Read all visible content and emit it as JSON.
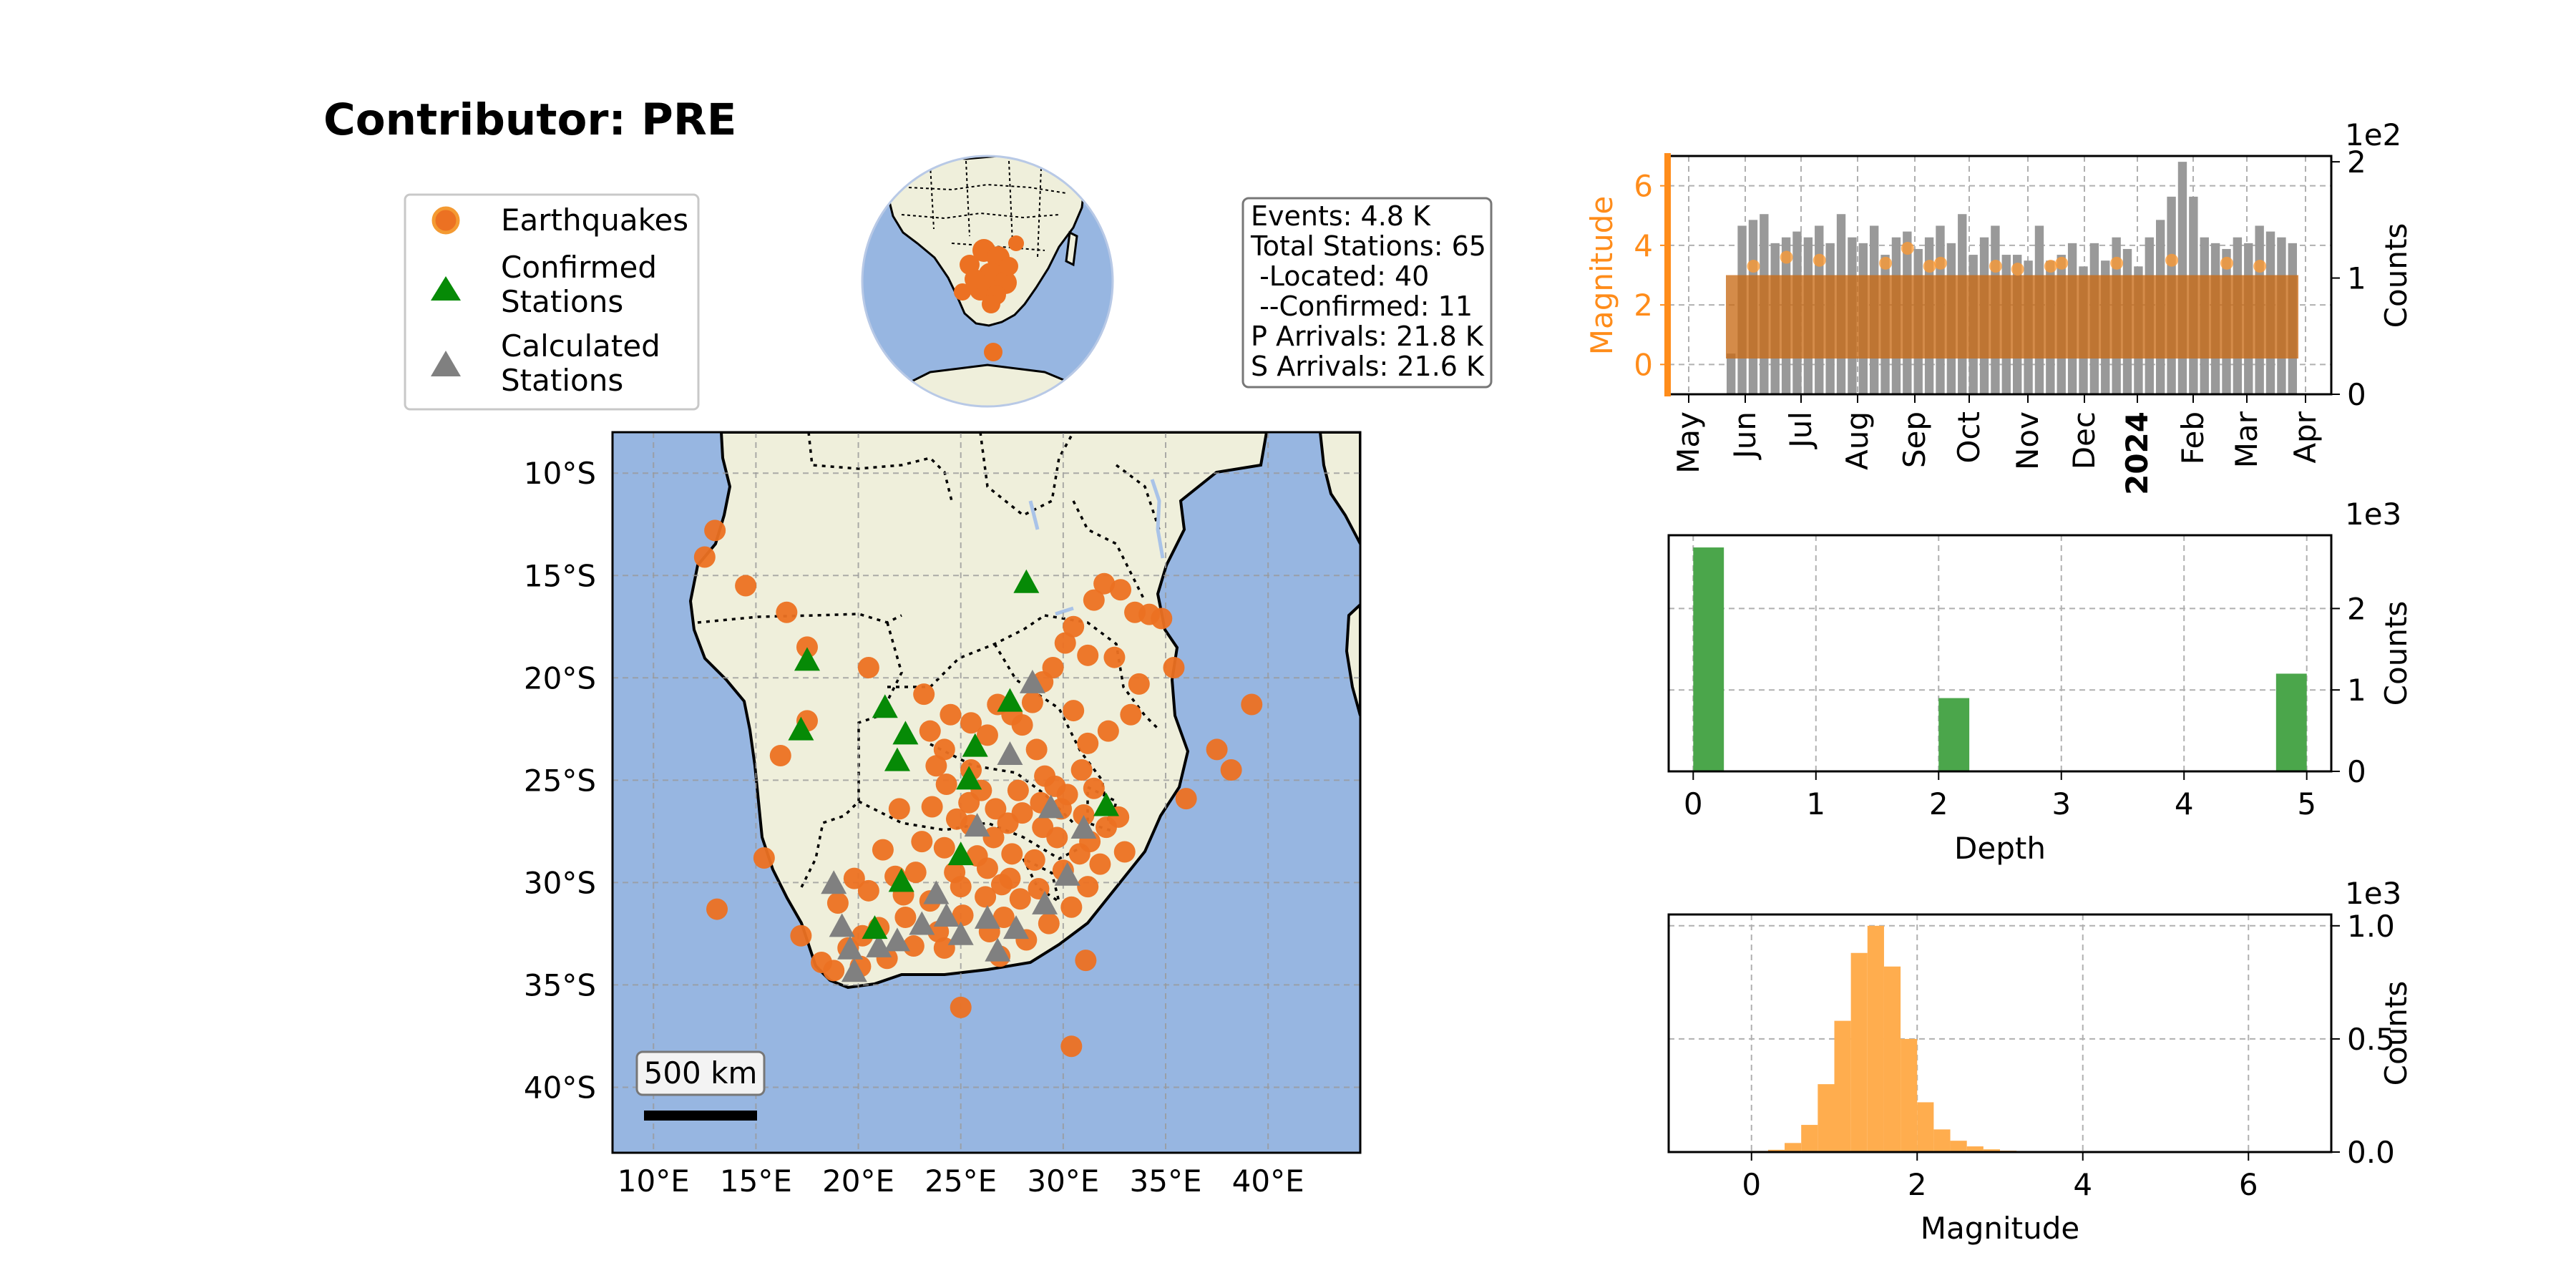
{
  "page": {
    "title": "Contributor: PRE"
  },
  "legend": {
    "items": [
      {
        "label_lines": [
          "Earthquakes"
        ],
        "marker": "circle",
        "color": "#f28c28"
      },
      {
        "label_lines": [
          "Confirmed",
          "Stations"
        ],
        "marker": "triangle",
        "color": "#008000"
      },
      {
        "label_lines": [
          "Calculated",
          "Stations"
        ],
        "marker": "triangle",
        "color": "#808080"
      }
    ]
  },
  "stats_box": {
    "lines": [
      "Events: 4.8 K",
      "Total Stations: 65",
      " -Located: 40",
      " --Confirmed: 11",
      "P Arrivals: 21.8 K",
      "S Arrivals: 21.6 K"
    ]
  },
  "scale_bar": {
    "label": "500 km"
  },
  "colors": {
    "ocean": "#97b6e1",
    "land": "#efefdb",
    "quake": "#ec7122",
    "confirmed": "#068a06",
    "calculated": "#808080",
    "depth_bar": "#4ba64b",
    "mag_hist": "#ffad4e",
    "time_bar": "#999999",
    "mag_axis": "#ff8c1a"
  },
  "chart_data": [
    {
      "type": "scatter",
      "name": "map",
      "xticks": [
        "10°E",
        "15°E",
        "20°E",
        "25°E",
        "30°E",
        "35°E",
        "40°E"
      ],
      "yticks": [
        "10°S",
        "15°S",
        "20°S",
        "25°S",
        "30°S",
        "35°S",
        "40°S"
      ],
      "xlim": [
        8,
        44.5
      ],
      "ylim": [
        -43.2,
        -8
      ],
      "grid": true,
      "quakes": [
        [
          13,
          -12.8
        ],
        [
          12.5,
          -14.1
        ],
        [
          14.5,
          -15.5
        ],
        [
          16.5,
          -16.8
        ],
        [
          17.5,
          -18.5
        ],
        [
          20.5,
          -19.5
        ],
        [
          23.2,
          -20.8
        ],
        [
          23.5,
          -22.6
        ],
        [
          24.2,
          -23.5
        ],
        [
          24.5,
          -21.8
        ],
        [
          25.5,
          -22.2
        ],
        [
          26.3,
          -22.8
        ],
        [
          26.8,
          -21.3
        ],
        [
          27.5,
          -21.8
        ],
        [
          28,
          -22.3
        ],
        [
          28.5,
          -21.2
        ],
        [
          29,
          -20.2
        ],
        [
          29.5,
          -19.5
        ],
        [
          30.1,
          -18.3
        ],
        [
          30.5,
          -17.5
        ],
        [
          31.2,
          -18.9
        ],
        [
          31.5,
          -16.2
        ],
        [
          32,
          -15.4
        ],
        [
          32.8,
          -15.7
        ],
        [
          33.5,
          -16.8
        ],
        [
          34.2,
          -16.9
        ],
        [
          34.8,
          -17.1
        ],
        [
          35.4,
          -19.5
        ],
        [
          39.2,
          -21.3
        ],
        [
          37.5,
          -23.5
        ],
        [
          38.2,
          -24.5
        ],
        [
          36,
          -25.9
        ],
        [
          33,
          -28.5
        ],
        [
          31.1,
          -33.8
        ],
        [
          30.4,
          -38
        ],
        [
          25,
          -36.1
        ],
        [
          13.1,
          -31.3
        ],
        [
          15.4,
          -28.8
        ],
        [
          16.2,
          -23.8
        ],
        [
          17.5,
          -22.1
        ],
        [
          17.2,
          -32.6
        ],
        [
          22,
          -26.4
        ],
        [
          28.7,
          -23.5
        ],
        [
          30.5,
          -21.6
        ],
        [
          31.2,
          -23.2
        ],
        [
          33.3,
          -21.8
        ],
        [
          33.7,
          -20.3
        ],
        [
          32.5,
          -19
        ],
        [
          32.2,
          -22.6
        ],
        [
          19,
          -31
        ],
        [
          20.5,
          -30.4
        ],
        [
          22.8,
          -29.5
        ],
        [
          24.2,
          -28.3
        ],
        [
          25.5,
          -27.2
        ],
        [
          26.7,
          -26.4
        ],
        [
          27.8,
          -25.5
        ],
        [
          29.1,
          -24.8
        ],
        [
          30.2,
          -25.7
        ],
        [
          31,
          -26.7
        ],
        [
          29.7,
          -27.8
        ],
        [
          28.6,
          -28.9
        ],
        [
          27.4,
          -29.8
        ],
        [
          26.2,
          -30.7
        ],
        [
          25.1,
          -31.6
        ],
        [
          23.9,
          -32.4
        ],
        [
          22.7,
          -33.1
        ],
        [
          21.4,
          -33.7
        ],
        [
          20.1,
          -34.1
        ],
        [
          19.5,
          -33.2
        ],
        [
          18.8,
          -34.3
        ],
        [
          18.2,
          -33.9
        ],
        [
          26.9,
          -33.6
        ],
        [
          28.2,
          -32.8
        ],
        [
          29.3,
          -32
        ],
        [
          30.4,
          -31.2
        ],
        [
          31.2,
          -30.2
        ],
        [
          31.8,
          -29.1
        ],
        [
          31.3,
          -28
        ],
        [
          32.1,
          -27.3
        ],
        [
          32.7,
          -26.8
        ],
        [
          24.3,
          -25.2
        ],
        [
          23.8,
          -24.3
        ],
        [
          25.5,
          -24.5
        ],
        [
          26,
          -25.5
        ],
        [
          27.3,
          -27.1
        ],
        [
          28,
          -26.6
        ],
        [
          28.9,
          -26.1
        ],
        [
          29.6,
          -25.3
        ],
        [
          30.9,
          -24.5
        ],
        [
          31.5,
          -25.4
        ],
        [
          21.2,
          -28.4
        ],
        [
          22.2,
          -30.6
        ],
        [
          23.5,
          -30.9
        ],
        [
          24.7,
          -29.5
        ],
        [
          25.8,
          -28.7
        ],
        [
          26.6,
          -27.8
        ],
        [
          27.9,
          -30.8
        ],
        [
          28.8,
          -30.3
        ],
        [
          30,
          -29.4
        ],
        [
          30.8,
          -28.6
        ],
        [
          26.4,
          -32.4
        ],
        [
          27.1,
          -31.7
        ],
        [
          24.2,
          -33.2
        ],
        [
          21,
          -32.2
        ],
        [
          20.2,
          -32.6
        ],
        [
          22.3,
          -31.7
        ],
        [
          23.1,
          -28
        ],
        [
          24.8,
          -26.9
        ],
        [
          25.4,
          -26.1
        ],
        [
          27.5,
          -28.6
        ],
        [
          29,
          -27.3
        ],
        [
          29.9,
          -26.4
        ],
        [
          19.8,
          -29.8
        ],
        [
          21.8,
          -29.7
        ],
        [
          23.6,
          -26.3
        ],
        [
          25,
          -30.2
        ],
        [
          26.3,
          -29.3
        ],
        [
          27,
          -30.1
        ]
      ],
      "confirmed": [
        [
          17.5,
          -19.2
        ],
        [
          28.2,
          -15.4
        ],
        [
          21.3,
          -21.5
        ],
        [
          17.2,
          -22.6
        ],
        [
          22.3,
          -22.8
        ],
        [
          21.9,
          -24.1
        ],
        [
          27.4,
          -21.2
        ],
        [
          25.7,
          -23.4
        ],
        [
          25.4,
          -25
        ],
        [
          32.1,
          -26.3
        ],
        [
          25,
          -28.7
        ],
        [
          22.1,
          -30
        ],
        [
          20.8,
          -32.3
        ]
      ],
      "calculated": [
        [
          28.5,
          -20.3
        ],
        [
          27.4,
          -23.8
        ],
        [
          24.3,
          -31.7
        ],
        [
          31,
          -27.4
        ],
        [
          18.8,
          -30.1
        ],
        [
          19.2,
          -32.2
        ],
        [
          19.6,
          -33.3
        ],
        [
          21,
          -33.2
        ],
        [
          21.9,
          -32.9
        ],
        [
          23.1,
          -32.1
        ],
        [
          25,
          -32.6
        ],
        [
          26.3,
          -31.8
        ],
        [
          26.8,
          -33.4
        ],
        [
          27.7,
          -32.3
        ],
        [
          29.1,
          -31.1
        ],
        [
          30.2,
          -29.7
        ],
        [
          19.8,
          -34.4
        ],
        [
          25.8,
          -27.3
        ],
        [
          23.8,
          -30.6
        ],
        [
          29.4,
          -26.4
        ]
      ]
    },
    {
      "type": "line",
      "name": "globe_inset",
      "center_lon": 25,
      "center_lat": -10,
      "quakes_marked": true
    },
    {
      "type": "bar",
      "name": "events_over_time",
      "categories": [
        "May",
        "Jun",
        "Jul",
        "Aug",
        "Sep",
        "Oct",
        "Nov",
        "Dec",
        "2024",
        "Feb",
        "Mar",
        "Apr"
      ],
      "bold_category": "2024",
      "y_left_label": "Magnitude",
      "y_left_ticks": [
        "0",
        "2",
        "4",
        "6"
      ],
      "y_left_lim": [
        -1,
        7
      ],
      "y_right_label": "Counts",
      "y_right_ticks": [
        "0",
        "1",
        "2"
      ],
      "y_right_lim": [
        0,
        2.05
      ],
      "y_right_scale_note": "1e2",
      "bar_values": [
        0.35,
        1.45,
        1.5,
        1.55,
        1.3,
        1.35,
        1.4,
        1.35,
        1.45,
        1.3,
        1.55,
        1.35,
        1.3,
        1.45,
        1.2,
        1.35,
        1.4,
        1.25,
        1.35,
        1.45,
        1.3,
        1.55,
        1.2,
        1.35,
        1.45,
        1.2,
        1.2,
        1.15,
        1.45,
        1.15,
        1.2,
        1.3,
        1.1,
        1.3,
        1.15,
        1.35,
        1.25,
        1.1,
        1.35,
        1.5,
        1.7,
        2.0,
        1.7,
        1.35,
        1.3,
        1.25,
        1.35,
        1.3,
        1.45,
        1.4,
        1.35,
        1.3
      ],
      "magnitude_band": [
        0.2,
        3.0
      ],
      "magnitude_outliers": [
        [
          2,
          3.3
        ],
        [
          5,
          3.6
        ],
        [
          8,
          3.5
        ],
        [
          14,
          3.4
        ],
        [
          16,
          3.9
        ],
        [
          19,
          3.4
        ],
        [
          24,
          3.3
        ],
        [
          26,
          3.2
        ],
        [
          30,
          3.4
        ],
        [
          35,
          3.4
        ],
        [
          40,
          3.5
        ],
        [
          45,
          3.4
        ],
        [
          48,
          3.3
        ],
        [
          18,
          3.3
        ],
        [
          29,
          3.3
        ]
      ]
    },
    {
      "type": "bar",
      "name": "depth_histogram",
      "xlabel": "Depth",
      "ylabel": "Counts",
      "x_ticks": [
        "0",
        "1",
        "2",
        "3",
        "4",
        "5"
      ],
      "xlim": [
        -0.2,
        5.2
      ],
      "y_ticks": [
        "0",
        "1",
        "2"
      ],
      "ylim": [
        0,
        2.9
      ],
      "y_scale_note": "1e3",
      "bins": [
        [
          0,
          2.75
        ],
        [
          2.0,
          0.9
        ],
        [
          4.75,
          1.2
        ]
      ],
      "bin_width": 0.25
    },
    {
      "type": "bar",
      "name": "magnitude_histogram",
      "xlabel": "Magnitude",
      "ylabel": "Counts",
      "x_ticks": [
        "0",
        "2",
        "4",
        "6"
      ],
      "xlim": [
        -1,
        7
      ],
      "y_ticks": [
        "0.0",
        "0.5",
        "1.0"
      ],
      "ylim": [
        0,
        1.05
      ],
      "y_scale_note": "1e3",
      "bin_width": 0.2,
      "bins": [
        [
          0.0,
          0.005
        ],
        [
          0.2,
          0.01
        ],
        [
          0.4,
          0.04
        ],
        [
          0.6,
          0.12
        ],
        [
          0.8,
          0.3
        ],
        [
          1.0,
          0.58
        ],
        [
          1.2,
          0.88
        ],
        [
          1.4,
          1.0
        ],
        [
          1.6,
          0.82
        ],
        [
          1.8,
          0.5
        ],
        [
          2.0,
          0.22
        ],
        [
          2.2,
          0.1
        ],
        [
          2.4,
          0.05
        ],
        [
          2.6,
          0.025
        ],
        [
          2.8,
          0.012
        ],
        [
          3.0,
          0.006
        ],
        [
          3.2,
          0.003
        ]
      ]
    }
  ]
}
